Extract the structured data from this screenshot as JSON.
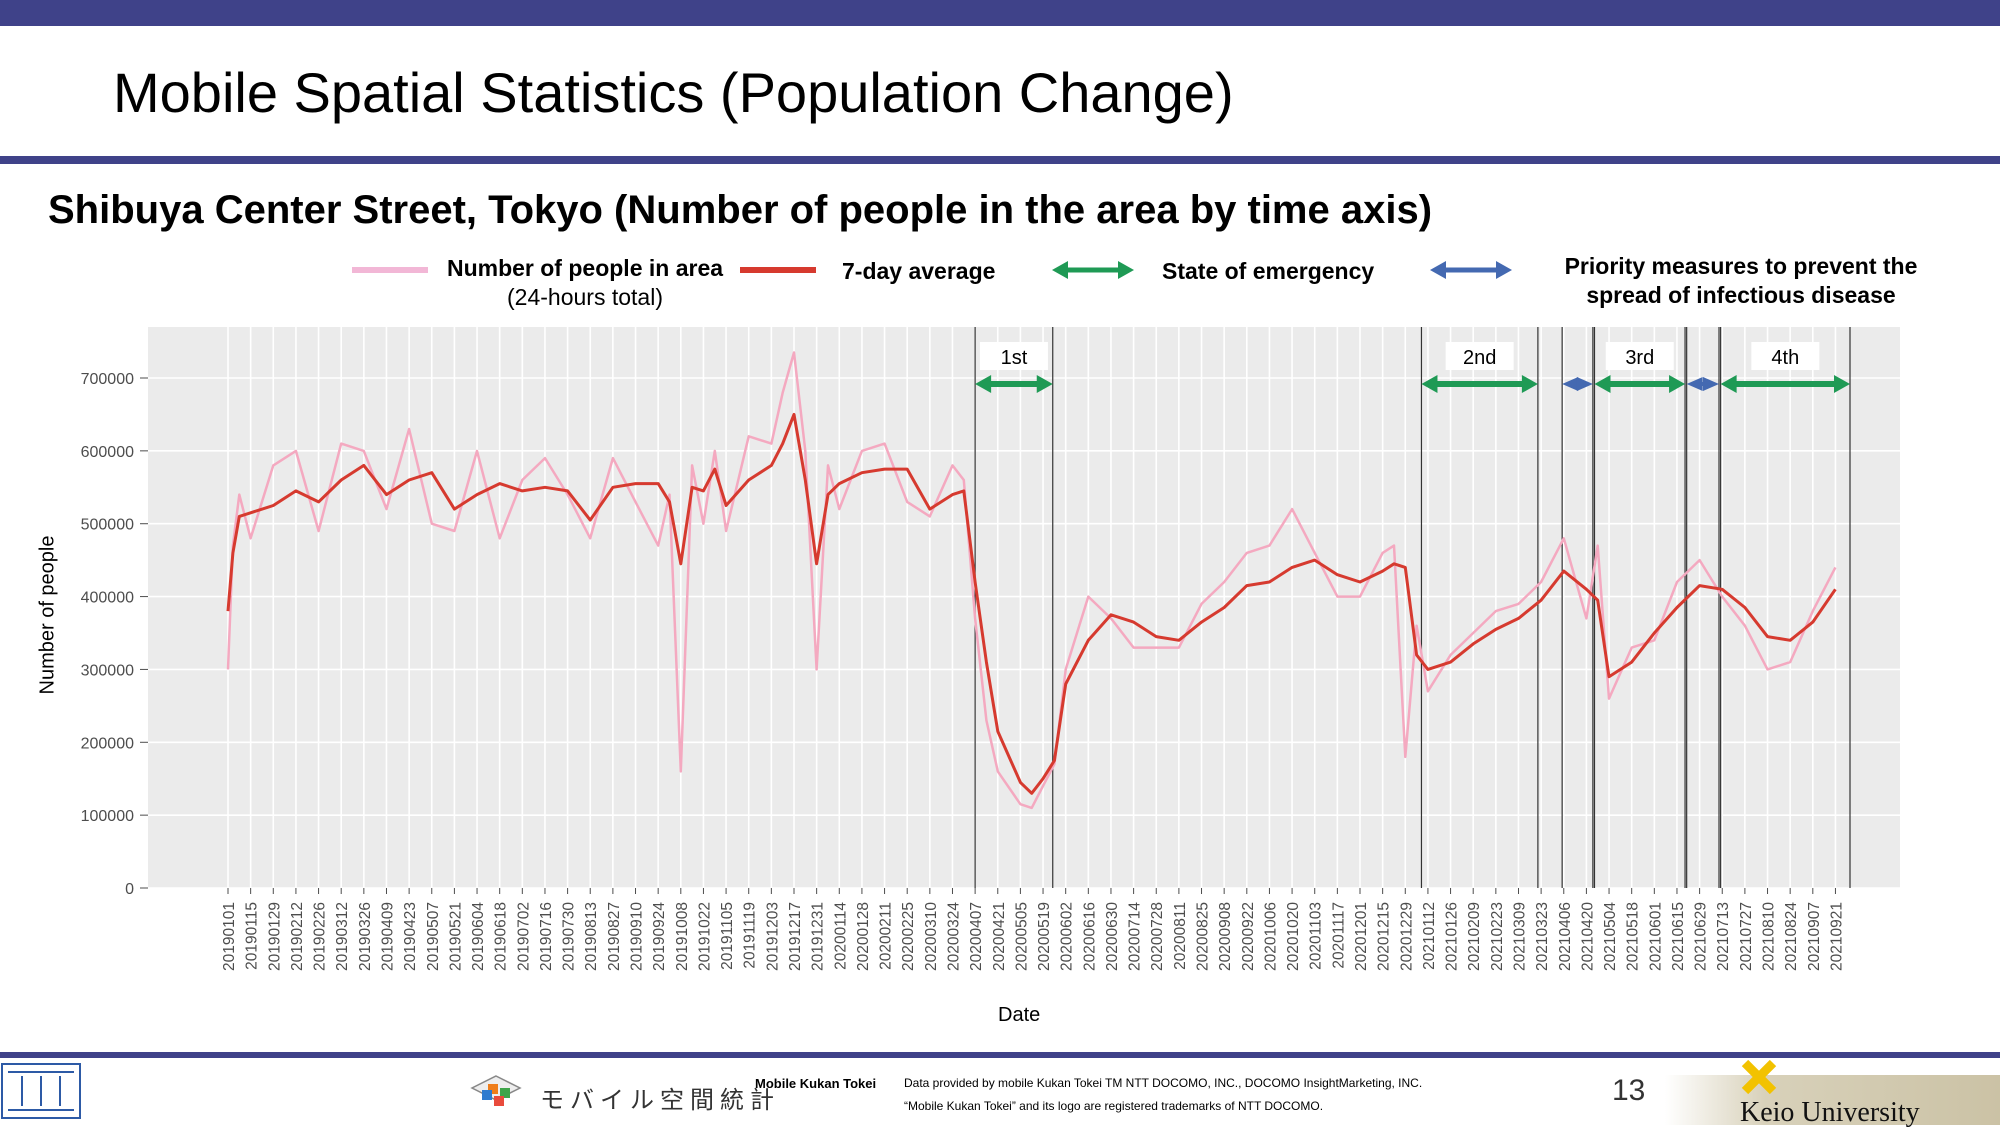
{
  "title": "Mobile Spatial Statistics (Population Change)",
  "subtitle": "Shibuya Center Street, Tokyo (Number of people in the area by time axis)",
  "legend": {
    "daily_label_1": "Number of people in area",
    "daily_label_2": "(24-hours total)",
    "avg_label": "7-day average",
    "emergency_label": "State of emergency",
    "priority_label_1": "Priority measures to prevent the",
    "priority_label_2": "spread of infectious disease"
  },
  "colors": {
    "header_bar": "#3f4289",
    "daily_line": "#f4a9c0",
    "avg_line": "#d63a2f",
    "emergency": "#1f9a55",
    "priority": "#4469b1",
    "plot_bg": "#ebebeb"
  },
  "footer": {
    "brand_jp": "モバイル空間統計",
    "brand_en": "Mobile Kukan Tokei",
    "credit_1": "Data provided by mobile Kukan Tokei TM NTT DOCOMO, INC., DOCOMO InsightMarketing, INC.",
    "credit_2": "“Mobile Kukan Tokei” and its logo are registered trademarks of NTT DOCOMO.",
    "page_number": "13",
    "university": "Keio University"
  },
  "chart_data": {
    "type": "line",
    "xlabel": "Date",
    "ylabel": "Number of people",
    "ylim": [
      0,
      770000
    ],
    "yticks": [
      0,
      100000,
      200000,
      300000,
      400000,
      500000,
      600000,
      700000
    ],
    "grid": true,
    "legend_position": "top",
    "xtick_labels": [
      "20190101",
      "20190115",
      "20190129",
      "20190212",
      "20190226",
      "20190312",
      "20190326",
      "20190409",
      "20190423",
      "20190507",
      "20190521",
      "20190604",
      "20190618",
      "20190702",
      "20190716",
      "20190730",
      "20190813",
      "20190827",
      "20190910",
      "20190924",
      "20191008",
      "20191022",
      "20191105",
      "20191119",
      "20191203",
      "20191217",
      "20191231",
      "20200114",
      "20200128",
      "20200211",
      "20200225",
      "20200310",
      "20200324",
      "20200407",
      "20200421",
      "20200505",
      "20200519",
      "20200602",
      "20200616",
      "20200630",
      "20200714",
      "20200728",
      "20200811",
      "20200825",
      "20200908",
      "20200922",
      "20201006",
      "20201020",
      "20201103",
      "20201117",
      "20201201",
      "20201215",
      "20201229",
      "20210112",
      "20210126",
      "20210209",
      "20210223",
      "20210309",
      "20210323",
      "20210406",
      "20210420",
      "20210504",
      "20210518",
      "20210601",
      "20210615",
      "20210629",
      "20210713",
      "20210727",
      "20210810",
      "20210824",
      "20210907",
      "20210921"
    ],
    "series": [
      {
        "name": "7-day average",
        "x": [
          "20190101",
          "20190104",
          "20190108",
          "20190115",
          "20190129",
          "20190212",
          "20190226",
          "20190312",
          "20190326",
          "20190409",
          "20190423",
          "20190507",
          "20190521",
          "20190604",
          "20190618",
          "20190702",
          "20190716",
          "20190730",
          "20190813",
          "20190827",
          "20190910",
          "20190924",
          "20191001",
          "20191008",
          "20191015",
          "20191022",
          "20191029",
          "20191105",
          "20191119",
          "20191203",
          "20191210",
          "20191217",
          "20191224",
          "20191231",
          "20200107",
          "20200114",
          "20200128",
          "20200211",
          "20200225",
          "20200310",
          "20200324",
          "20200331",
          "20200407",
          "20200414",
          "20200421",
          "20200505",
          "20200512",
          "20200519",
          "20200526",
          "20200602",
          "20200616",
          "20200630",
          "20200714",
          "20200728",
          "20200811",
          "20200825",
          "20200908",
          "20200922",
          "20201006",
          "20201020",
          "20201103",
          "20201117",
          "20201201",
          "20201215",
          "20201222",
          "20201229",
          "20210105",
          "20210112",
          "20210126",
          "20210209",
          "20210223",
          "20210309",
          "20210323",
          "20210406",
          "20210420",
          "20210427",
          "20210504",
          "20210518",
          "20210601",
          "20210615",
          "20210629",
          "20210713",
          "20210727",
          "20210810",
          "20210824",
          "20210907",
          "20210921"
        ],
        "values": [
          380000,
          460000,
          510000,
          515000,
          525000,
          545000,
          530000,
          560000,
          580000,
          540000,
          560000,
          570000,
          520000,
          540000,
          555000,
          545000,
          550000,
          545000,
          505000,
          550000,
          555000,
          555000,
          530000,
          445000,
          550000,
          545000,
          575000,
          525000,
          560000,
          580000,
          610000,
          650000,
          560000,
          445000,
          540000,
          555000,
          570000,
          575000,
          575000,
          520000,
          540000,
          545000,
          420000,
          310000,
          215000,
          145000,
          130000,
          150000,
          175000,
          280000,
          340000,
          375000,
          365000,
          345000,
          340000,
          365000,
          385000,
          415000,
          420000,
          440000,
          450000,
          430000,
          420000,
          435000,
          445000,
          440000,
          320000,
          300000,
          310000,
          335000,
          355000,
          370000,
          395000,
          435000,
          410000,
          395000,
          290000,
          310000,
          350000,
          385000,
          415000,
          410000,
          385000,
          345000,
          340000,
          365000,
          410000
        ]
      },
      {
        "name": "Number of people in area",
        "x": [
          "20190101",
          "20190104",
          "20190108",
          "20190115",
          "20190129",
          "20190212",
          "20190226",
          "20190312",
          "20190326",
          "20190409",
          "20190423",
          "20190507",
          "20190521",
          "20190604",
          "20190618",
          "20190702",
          "20190716",
          "20190730",
          "20190813",
          "20190827",
          "20190910",
          "20190924",
          "20191001",
          "20191008",
          "20191015",
          "20191022",
          "20191029",
          "20191105",
          "20191119",
          "20191203",
          "20191210",
          "20191217",
          "20191224",
          "20191231",
          "20200107",
          "20200114",
          "20200128",
          "20200211",
          "20200225",
          "20200310",
          "20200324",
          "20200331",
          "20200407",
          "20200414",
          "20200421",
          "20200505",
          "20200512",
          "20200519",
          "20200526",
          "20200602",
          "20200616",
          "20200630",
          "20200714",
          "20200728",
          "20200811",
          "20200825",
          "20200908",
          "20200922",
          "20201006",
          "20201020",
          "20201103",
          "20201117",
          "20201201",
          "20201215",
          "20201222",
          "20201229",
          "20210105",
          "20210112",
          "20210126",
          "20210209",
          "20210223",
          "20210309",
          "20210323",
          "20210406",
          "20210420",
          "20210427",
          "20210504",
          "20210518",
          "20210601",
          "20210615",
          "20210629",
          "20210713",
          "20210727",
          "20210810",
          "20210824",
          "20210907",
          "20210921"
        ],
        "values": [
          300000,
          470000,
          540000,
          480000,
          580000,
          600000,
          490000,
          610000,
          600000,
          520000,
          630000,
          500000,
          490000,
          600000,
          480000,
          560000,
          590000,
          540000,
          480000,
          590000,
          530000,
          470000,
          540000,
          160000,
          580000,
          500000,
          600000,
          490000,
          620000,
          610000,
          680000,
          735000,
          600000,
          300000,
          580000,
          520000,
          600000,
          610000,
          530000,
          510000,
          580000,
          560000,
          370000,
          230000,
          160000,
          115000,
          110000,
          140000,
          170000,
          300000,
          400000,
          370000,
          330000,
          330000,
          330000,
          390000,
          420000,
          460000,
          470000,
          520000,
          460000,
          400000,
          400000,
          460000,
          470000,
          180000,
          360000,
          270000,
          320000,
          350000,
          380000,
          390000,
          420000,
          480000,
          370000,
          470000,
          260000,
          330000,
          340000,
          420000,
          450000,
          400000,
          360000,
          300000,
          310000,
          380000,
          440000
        ]
      }
    ],
    "periods": [
      {
        "label": "1st",
        "type": "State of emergency",
        "start": "20200407",
        "end": "20200525"
      },
      {
        "label": "2nd",
        "type": "State of emergency",
        "start": "20210108",
        "end": "20210321"
      },
      {
        "label": "",
        "type": "Priority measures to prevent the spread of infectious disease",
        "start": "20210405",
        "end": "20210424"
      },
      {
        "label": "3rd",
        "type": "State of emergency",
        "start": "20210425",
        "end": "20210620"
      },
      {
        "label": "",
        "type": "Priority measures to prevent the spread of infectious disease",
        "start": "20210621",
        "end": "20210711"
      },
      {
        "label": "4th",
        "type": "State of emergency",
        "start": "20210712",
        "end": "20210930"
      }
    ]
  }
}
